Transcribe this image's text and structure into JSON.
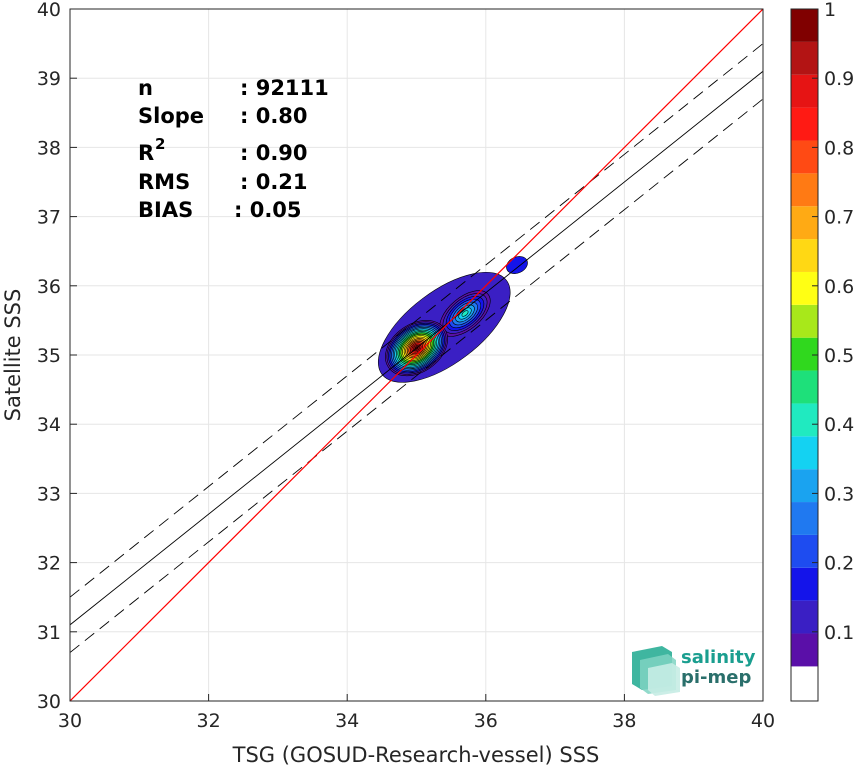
{
  "chart_data": {
    "type": "scatter",
    "subtype": "density-contour",
    "xlabel": "TSG (GOSUD-Research-vessel) SSS",
    "ylabel": "Satellite SSS",
    "xlim": [
      30,
      40
    ],
    "ylim": [
      30,
      40
    ],
    "xticks": [
      "30",
      "32",
      "34",
      "36",
      "38",
      "40"
    ],
    "yticks": [
      "30",
      "31",
      "32",
      "33",
      "34",
      "35",
      "36",
      "37",
      "38",
      "39",
      "40"
    ],
    "grid": true,
    "lines": {
      "identity": {
        "slope": 1,
        "intercept": 0,
        "color": "#ff0000"
      },
      "fit": {
        "slope": 0.8,
        "intercept_at_30": 31.1,
        "intercept_at_40": 39.1,
        "color": "#000000"
      },
      "upper_band": {
        "y_at_30": 31.5,
        "y_at_40": 39.5,
        "dash": true
      },
      "lower_band": {
        "y_at_30": 30.7,
        "y_at_40": 38.7,
        "dash": true
      }
    },
    "density_peaks": [
      {
        "x": 35.0,
        "y": 35.1,
        "level": 1.0
      },
      {
        "x": 35.7,
        "y": 35.6,
        "level": 0.45
      },
      {
        "x": 36.45,
        "y": 36.3,
        "level": 0.08
      }
    ],
    "stats": [
      {
        "label": "n",
        "value": ": 92111"
      },
      {
        "label": "Slope",
        "value": ": 0.80"
      },
      {
        "label": "R",
        "sup": "2",
        "value": ": 0.90"
      },
      {
        "label": "RMS",
        "value": ": 0.21"
      },
      {
        "label": "BIAS",
        "value": ": 0.05"
      }
    ],
    "colorbar": {
      "ticks": [
        "0.1",
        "0.2",
        "0.3",
        "0.4",
        "0.5",
        "0.6",
        "0.7",
        "0.8",
        "0.9",
        "1"
      ],
      "min": 0,
      "max": 1,
      "colors": [
        "#ffffff",
        "#5a0fa8",
        "#3a1fc4",
        "#1414ea",
        "#1e4cf0",
        "#2079f0",
        "#1aa3f0",
        "#14d2f2",
        "#20eac0",
        "#1ee07a",
        "#30d81e",
        "#a8e81a",
        "#ffff14",
        "#ffd814",
        "#ffaa14",
        "#ff7a14",
        "#ff4a14",
        "#ff1a14",
        "#e61414",
        "#b31414",
        "#800000"
      ]
    }
  },
  "logo": {
    "line1": "salinity",
    "line2": "pi-mep"
  }
}
